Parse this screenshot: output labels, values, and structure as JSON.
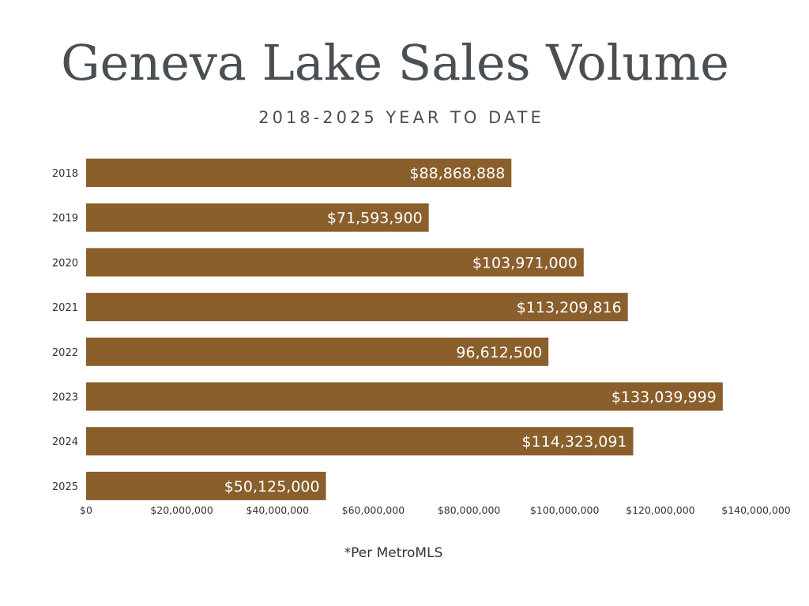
{
  "header": {
    "title": "Geneva Lake Sales Volume",
    "subtitle": "2018-2025 YEAR TO DATE"
  },
  "footnote": "*Per MetroMLS",
  "colors": {
    "bar": "#8a5f2c",
    "bar_label": "#ffffff",
    "text": "#4a4f54"
  },
  "chart_data": {
    "type": "bar",
    "orientation": "horizontal",
    "categories": [
      "2018",
      "2019",
      "2020",
      "2021",
      "2022",
      "2023",
      "2024",
      "2025"
    ],
    "values": [
      88868888,
      71593900,
      103971000,
      113209816,
      96612500,
      133039999,
      114323091,
      50125000
    ],
    "data_labels": [
      "$88,868,888",
      "$71,593,900",
      "$103,971,000",
      "$113,209,816",
      "96,612,500",
      "$133,039,999",
      "$114,323,091",
      "$50,125,000"
    ],
    "xlim": [
      0,
      140000000
    ],
    "x_ticks": [
      0,
      20000000,
      40000000,
      60000000,
      80000000,
      100000000,
      120000000,
      140000000
    ],
    "x_tick_labels": [
      "$0",
      "$20,000,000",
      "$40,000,000",
      "$60,000,000",
      "$80,000,000",
      "$100,000,000",
      "$120,000,000",
      "$140,000,000"
    ],
    "grid": false,
    "legend": "none"
  }
}
